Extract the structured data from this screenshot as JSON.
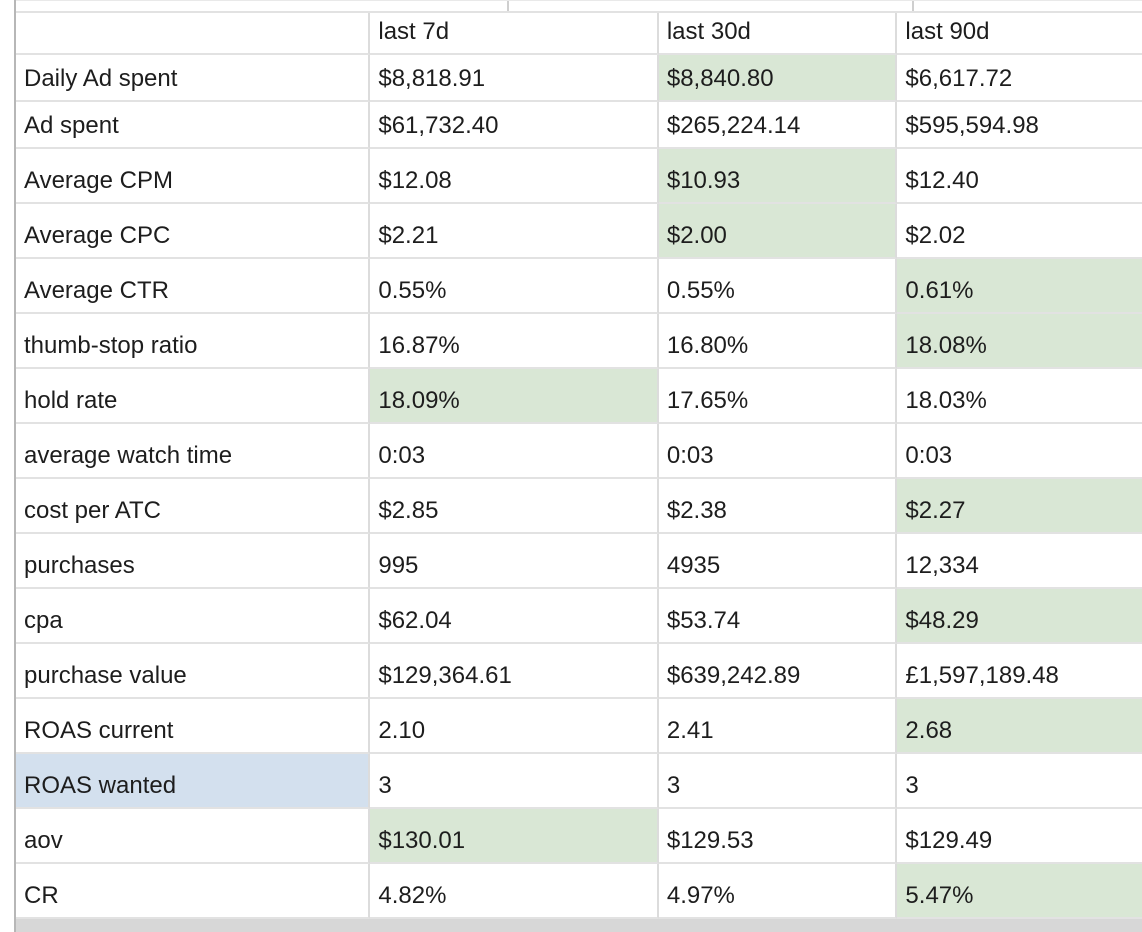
{
  "app": {
    "kind": "spreadsheet-metrics-table"
  },
  "colors": {
    "highlight_green": "#d9e7d5",
    "highlight_blue": "#d3e0ee",
    "gridline": "#e2e2e2",
    "outer_border": "#b7b7b7",
    "footer_strip": "#d7d7d7",
    "text": "#1d1d1d"
  },
  "table": {
    "columns": [
      "",
      "last 7d",
      "last 30d",
      "last 90d"
    ],
    "rows": [
      {
        "label": "Daily Ad spent",
        "values": [
          "$8,818.91",
          "$8,840.80",
          "$6,617.72"
        ],
        "value_highlights": [
          null,
          "green",
          null
        ],
        "label_highlight": null
      },
      {
        "label": "Ad spent",
        "values": [
          "$61,732.40",
          "$265,224.14",
          "$595,594.98"
        ],
        "value_highlights": [
          null,
          null,
          null
        ],
        "label_highlight": null
      },
      {
        "label": "Average CPM",
        "values": [
          "$12.08",
          "$10.93",
          "$12.40"
        ],
        "value_highlights": [
          null,
          "green",
          null
        ],
        "label_highlight": null
      },
      {
        "label": "Average CPC",
        "values": [
          "$2.21",
          "$2.00",
          "$2.02"
        ],
        "value_highlights": [
          null,
          "green",
          null
        ],
        "label_highlight": null
      },
      {
        "label": "Average CTR",
        "values": [
          "0.55%",
          "0.55%",
          "0.61%"
        ],
        "value_highlights": [
          null,
          null,
          "green"
        ],
        "label_highlight": null
      },
      {
        "label": "thumb-stop ratio",
        "values": [
          "16.87%",
          "16.80%",
          "18.08%"
        ],
        "value_highlights": [
          null,
          null,
          "green"
        ],
        "label_highlight": null
      },
      {
        "label": "hold rate",
        "values": [
          "18.09%",
          "17.65%",
          "18.03%"
        ],
        "value_highlights": [
          "green",
          null,
          null
        ],
        "label_highlight": null
      },
      {
        "label": "average watch time",
        "values": [
          "0:03",
          "0:03",
          "0:03"
        ],
        "value_highlights": [
          null,
          null,
          null
        ],
        "label_highlight": null
      },
      {
        "label": "cost per ATC",
        "values": [
          "$2.85",
          "$2.38",
          "$2.27"
        ],
        "value_highlights": [
          null,
          null,
          "green"
        ],
        "label_highlight": null
      },
      {
        "label": "purchases",
        "values": [
          "995",
          "4935",
          "12,334"
        ],
        "value_highlights": [
          null,
          null,
          null
        ],
        "label_highlight": null
      },
      {
        "label": "cpa",
        "values": [
          "$62.04",
          "$53.74",
          "$48.29"
        ],
        "value_highlights": [
          null,
          null,
          "green"
        ],
        "label_highlight": null
      },
      {
        "label": "purchase value",
        "values": [
          "$129,364.61",
          "$639,242.89",
          "£1,597,189.48"
        ],
        "value_highlights": [
          null,
          null,
          null
        ],
        "label_highlight": null
      },
      {
        "label": "ROAS current",
        "values": [
          "2.10",
          "2.41",
          "2.68"
        ],
        "value_highlights": [
          null,
          null,
          "green"
        ],
        "label_highlight": null
      },
      {
        "label": "ROAS wanted",
        "values": [
          "3",
          "3",
          "3"
        ],
        "value_highlights": [
          null,
          null,
          null
        ],
        "label_highlight": "blue"
      },
      {
        "label": "aov",
        "values": [
          "$130.01",
          "$129.53",
          "$129.49"
        ],
        "value_highlights": [
          "green",
          null,
          null
        ],
        "label_highlight": null
      },
      {
        "label": "CR",
        "values": [
          "4.82%",
          "4.97%",
          "5.47%"
        ],
        "value_highlights": [
          null,
          null,
          "green"
        ],
        "label_highlight": null
      }
    ]
  }
}
